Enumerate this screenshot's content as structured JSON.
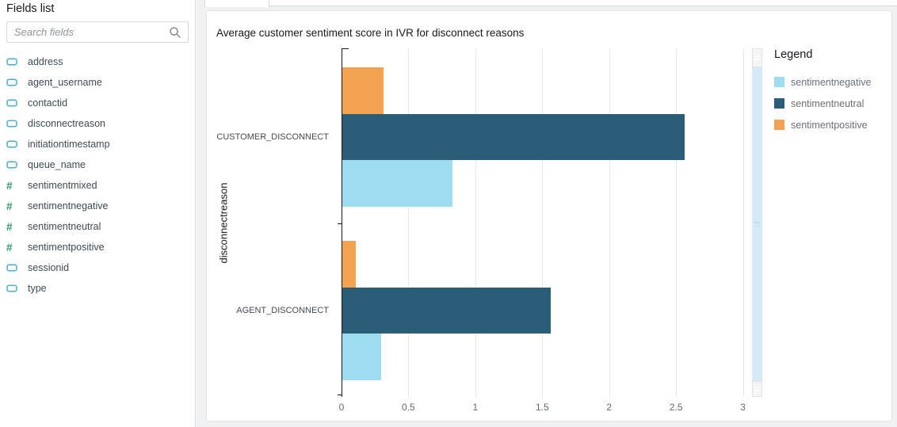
{
  "sidebar": {
    "title": "Fields list",
    "search_placeholder": "Search fields",
    "fields": [
      {
        "label": "address",
        "type": "dimension"
      },
      {
        "label": "agent_username",
        "type": "dimension"
      },
      {
        "label": "contactid",
        "type": "dimension"
      },
      {
        "label": "disconnectreason",
        "type": "dimension"
      },
      {
        "label": "initiationtimestamp",
        "type": "dimension"
      },
      {
        "label": "queue_name",
        "type": "dimension"
      },
      {
        "label": "sentimentmixed",
        "type": "measure"
      },
      {
        "label": "sentimentnegative",
        "type": "measure"
      },
      {
        "label": "sentimentneutral",
        "type": "measure"
      },
      {
        "label": "sentimentpositive",
        "type": "measure"
      },
      {
        "label": "sessionid",
        "type": "dimension"
      },
      {
        "label": "type",
        "type": "dimension"
      }
    ]
  },
  "visual": {
    "title": "Average customer sentiment score in IVR for disconnect reasons",
    "legend_title": "Legend"
  },
  "chart_data": {
    "type": "bar",
    "orientation": "horizontal",
    "title": "Average customer sentiment score in IVR for disconnect reasons",
    "xlabel": "",
    "ylabel": "disconnectreason",
    "categories": [
      "CUSTOMER_DISCONNECT",
      "AGENT_DISCONNECT"
    ],
    "series": [
      {
        "name": "sentimentnegative",
        "color": "#9EDCF0",
        "values": [
          0.82,
          0.29
        ]
      },
      {
        "name": "sentimentneutral",
        "color": "#295D78",
        "values": [
          2.56,
          1.56
        ]
      },
      {
        "name": "sentimentpositive",
        "color": "#F2A250",
        "values": [
          0.31,
          0.1
        ]
      }
    ],
    "bar_order_top_to_bottom": [
      "sentimentpositive",
      "sentimentneutral",
      "sentimentnegative"
    ],
    "xticks": [
      0,
      0.5,
      1,
      1.5,
      2,
      2.5,
      3
    ],
    "xlim": [
      0,
      3.02
    ],
    "grid": true,
    "legend_position": "right"
  },
  "colors": {
    "dimension_icon": "#4BAED0",
    "measure_icon": "#2AA05A",
    "sentimentnegative": "#9EDCF0",
    "sentimentneutral": "#295D78",
    "sentimentpositive": "#F2A250"
  }
}
